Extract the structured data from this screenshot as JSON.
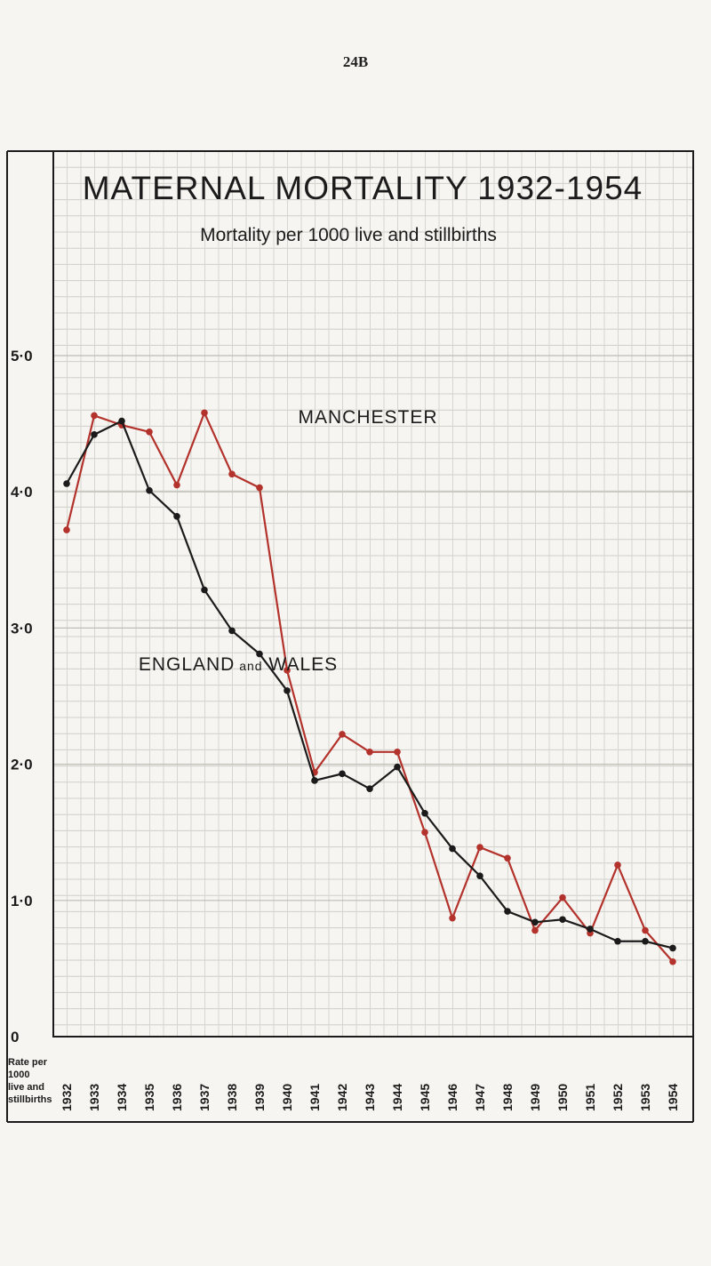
{
  "page_number": "24B",
  "chart_data": {
    "type": "line",
    "title": "MATERNAL MORTALITY 1932-1954",
    "subtitle": "Mortality per 1000 live and stillbirths",
    "ylabel": [
      "Rate per",
      "1000",
      "live and",
      "stillbirths"
    ],
    "y_tick_labels": [
      "0",
      "1·0",
      "2·0",
      "3·0",
      "4·0",
      "5·0"
    ],
    "ylim": [
      0,
      5
    ],
    "grid": true,
    "x": [
      "1932",
      "1933",
      "1934",
      "1935",
      "1936",
      "1937",
      "1938",
      "1939",
      "1940",
      "1941",
      "1942",
      "1943",
      "1944",
      "1945",
      "1946",
      "1947",
      "1948",
      "1949",
      "1950",
      "1951",
      "1952",
      "1953",
      "1954"
    ],
    "series": [
      {
        "name": "MANCHESTER",
        "color": "#b3322c",
        "values": [
          3.72,
          4.56,
          4.49,
          4.44,
          4.05,
          4.58,
          4.13,
          4.03,
          2.69,
          1.94,
          2.22,
          2.09,
          2.09,
          1.5,
          0.87,
          1.39,
          1.31,
          0.78,
          1.02,
          0.76,
          1.26,
          0.78,
          0.55
        ]
      },
      {
        "name": "ENGLAND and WALES",
        "color": "#1b1b1b",
        "values": [
          4.06,
          4.42,
          4.52,
          4.01,
          3.82,
          3.28,
          2.98,
          2.81,
          2.54,
          1.88,
          1.93,
          1.82,
          1.98,
          1.64,
          1.38,
          1.18,
          0.92,
          0.84,
          0.86,
          0.79,
          0.7,
          0.7,
          0.65
        ]
      }
    ]
  }
}
